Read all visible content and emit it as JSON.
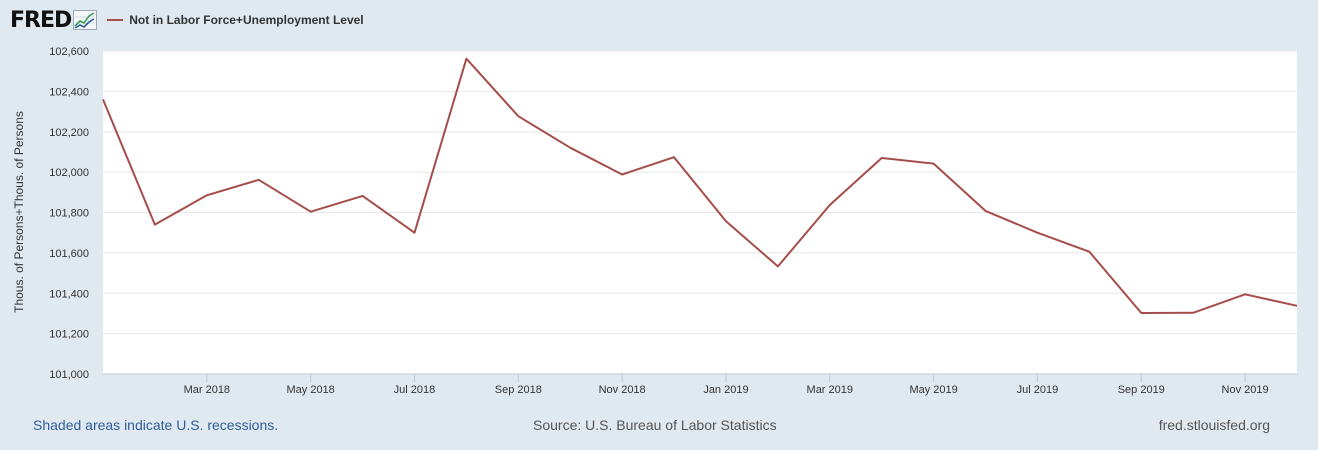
{
  "header": {
    "logo_text": "FRED",
    "legend_label": "Not in Labor Force+Unemployment Level"
  },
  "footer": {
    "recessions_note": "Shaded areas indicate U.S. recessions.",
    "source": "Source: U.S. Bureau of Labor Statistics",
    "site": "fred.stlouisfed.org"
  },
  "colors": {
    "page_background": "#e1e9f0",
    "plot_background": "#ffffff",
    "series_line": "#a54d4a",
    "gridline": "#e6e6e6"
  },
  "chart_data": {
    "type": "line",
    "title": "",
    "xlabel": "",
    "ylabel": "Thous. of Persons+Thous. of Persons",
    "ylim": [
      101000,
      102600
    ],
    "y_ticks": [
      101000,
      101200,
      101400,
      101600,
      101800,
      102000,
      102200,
      102400,
      102600
    ],
    "y_tick_labels": [
      "101,000",
      "101,200",
      "101,400",
      "101,600",
      "101,800",
      "102,000",
      "102,200",
      "102,400",
      "102,600"
    ],
    "x_tick_labels": [
      "Mar 2018",
      "May 2018",
      "Jul 2018",
      "Sep 2018",
      "Nov 2018",
      "Jan 2019",
      "Mar 2019",
      "May 2019",
      "Jul 2019",
      "Sep 2019",
      "Nov 2019"
    ],
    "x_tick_dates": [
      "2018-03",
      "2018-05",
      "2018-07",
      "2018-09",
      "2018-11",
      "2019-01",
      "2019-03",
      "2019-05",
      "2019-07",
      "2019-09",
      "2019-11"
    ],
    "grid": true,
    "legend_position": "top-left",
    "series": [
      {
        "name": "Not in Labor Force+Unemployment Level",
        "x": [
          "2018-01",
          "2018-02",
          "2018-03",
          "2018-04",
          "2018-05",
          "2018-06",
          "2018-07",
          "2018-08",
          "2018-09",
          "2018-10",
          "2018-11",
          "2018-12",
          "2019-01",
          "2019-02",
          "2019-03",
          "2019-04",
          "2019-05",
          "2019-06",
          "2019-07",
          "2019-08",
          "2019-09",
          "2019-10",
          "2019-11",
          "2019-12"
        ],
        "values": [
          102360,
          101740,
          101885,
          101962,
          101804,
          101882,
          101700,
          102562,
          102277,
          102121,
          101988,
          102074,
          101757,
          101533,
          101837,
          102070,
          102042,
          101808,
          101700,
          101606,
          101302,
          101303,
          101395,
          101338
        ]
      }
    ]
  }
}
